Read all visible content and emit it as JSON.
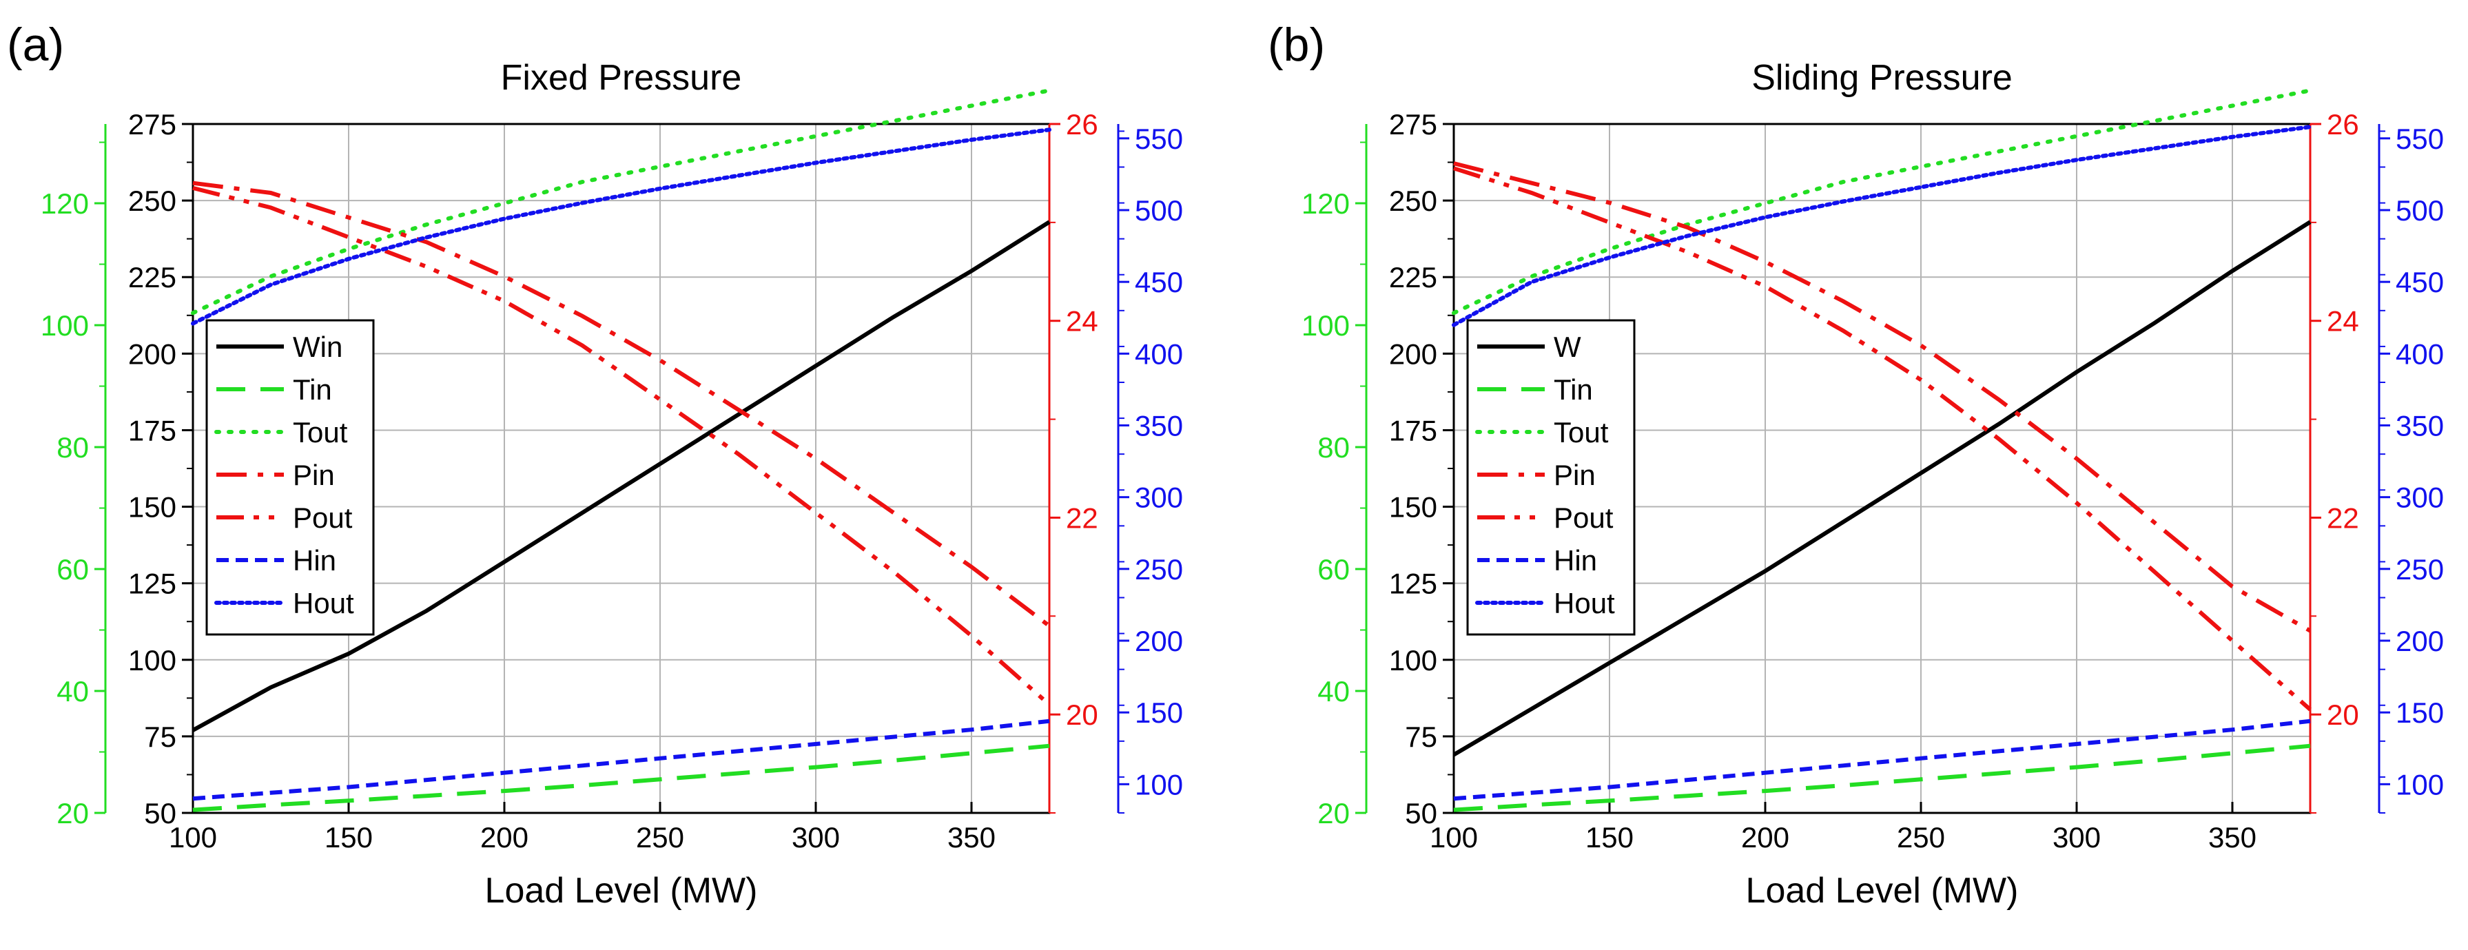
{
  "colors": {
    "black": "#000000",
    "green": "#22dd22",
    "red": "#ee1111",
    "blue": "#1111ee",
    "grid": "#b4b4b4"
  },
  "chart_data": [
    {
      "type": "line",
      "panel_label": "(a)",
      "title": "Fixed Pressure",
      "xlabel": "Load Level (MW)",
      "xlim": [
        100,
        375
      ],
      "xticks": [
        100,
        150,
        200,
        250,
        300,
        350
      ],
      "xtick_labels": [
        "100",
        "150",
        "200",
        "250",
        "300",
        "350"
      ],
      "axes": {
        "left_black": {
          "lim": [
            50,
            275
          ],
          "ticks": [
            50,
            75,
            100,
            125,
            150,
            175,
            200,
            225,
            250,
            275
          ],
          "labels": [
            "50",
            "75",
            "100",
            "125",
            "150",
            "175",
            "200",
            "225",
            "250",
            "275"
          ]
        },
        "left_green": {
          "lim": [
            20,
            133
          ],
          "ticks": [
            20,
            40,
            60,
            80,
            100,
            120
          ],
          "labels": [
            "20",
            "40",
            "60",
            "80",
            "100",
            "120"
          ]
        },
        "right_red": {
          "lim": [
            19.0,
            26.0
          ],
          "ticks": [
            20,
            22,
            24,
            26
          ],
          "labels": [
            "20",
            "22",
            "24",
            "26"
          ]
        },
        "right_blue": {
          "lim": [
            80,
            560
          ],
          "ticks": [
            100,
            150,
            200,
            250,
            300,
            350,
            400,
            450,
            500,
            550
          ],
          "labels": [
            "100",
            "150",
            "200",
            "250",
            "300",
            "350",
            "400",
            "450",
            "500",
            "550"
          ]
        }
      },
      "x": [
        100,
        125,
        150,
        175,
        200,
        225,
        250,
        275,
        300,
        325,
        350,
        375
      ],
      "series": [
        {
          "name": "Win",
          "axis": "left_black",
          "style": "solid",
          "color": "#000000",
          "values": [
            77,
            91,
            102,
            116,
            132,
            148,
            164,
            180,
            196,
            212,
            227,
            243
          ]
        },
        {
          "name": "Tin",
          "axis": "left_green",
          "style": "dash",
          "color": "#22dd22",
          "values": [
            20.5,
            21.3,
            22.0,
            22.8,
            23.6,
            24.5,
            25.5,
            26.5,
            27.5,
            28.6,
            29.8,
            31.0
          ]
        },
        {
          "name": "Tout",
          "axis": "left_green",
          "style": "dot",
          "color": "#22dd22",
          "values": [
            102,
            108,
            112.5,
            116.5,
            120,
            123.5,
            126,
            128.5,
            131,
            133.5,
            136,
            138.5
          ]
        },
        {
          "name": "Pin",
          "axis": "right_red",
          "style": "dashdot",
          "color": "#ee1111",
          "values": [
            25.4,
            25.3,
            25.05,
            24.8,
            24.45,
            24.05,
            23.6,
            23.1,
            22.6,
            22.05,
            21.5,
            20.9
          ]
        },
        {
          "name": "Pout",
          "axis": "right_red",
          "style": "dashdotdot",
          "color": "#ee1111",
          "values": [
            25.35,
            25.15,
            24.85,
            24.55,
            24.2,
            23.75,
            23.2,
            22.65,
            22.05,
            21.45,
            20.8,
            20.1
          ]
        },
        {
          "name": "Hin",
          "axis": "right_blue",
          "style": "shortdash",
          "color": "#1111ee",
          "values": [
            90,
            94,
            98,
            103,
            108,
            113,
            118,
            123,
            128,
            133,
            138,
            144
          ]
        },
        {
          "name": "Hout",
          "axis": "right_blue",
          "style": "densedot",
          "color": "#1111ee",
          "values": [
            421,
            448,
            466,
            481,
            494,
            505,
            515,
            524,
            533,
            541,
            549,
            556
          ]
        }
      ],
      "legend_position": "mid-left"
    },
    {
      "type": "line",
      "panel_label": "(b)",
      "title": "Sliding Pressure",
      "xlabel": "Load Level (MW)",
      "xlim": [
        100,
        375
      ],
      "xticks": [
        100,
        150,
        200,
        250,
        300,
        350
      ],
      "xtick_labels": [
        "100",
        "150",
        "200",
        "250",
        "300",
        "350"
      ],
      "axes": {
        "left_black": {
          "lim": [
            50,
            275
          ],
          "ticks": [
            50,
            75,
            100,
            125,
            150,
            175,
            200,
            225,
            250,
            275
          ],
          "labels": [
            "50",
            "75",
            "100",
            "125",
            "150",
            "175",
            "200",
            "225",
            "250",
            "275"
          ]
        },
        "left_green": {
          "lim": [
            20,
            133
          ],
          "ticks": [
            20,
            40,
            60,
            80,
            100,
            120
          ],
          "labels": [
            "20",
            "40",
            "60",
            "80",
            "100",
            "120"
          ]
        },
        "right_red": {
          "lim": [
            19.0,
            26.0
          ],
          "ticks": [
            20,
            22,
            24,
            26
          ],
          "labels": [
            "20",
            "22",
            "24",
            "26"
          ]
        },
        "right_blue": {
          "lim": [
            80,
            560
          ],
          "ticks": [
            100,
            150,
            200,
            250,
            300,
            350,
            400,
            450,
            500,
            550
          ],
          "labels": [
            "100",
            "150",
            "200",
            "250",
            "300",
            "350",
            "400",
            "450",
            "500",
            "550"
          ]
        }
      },
      "x": [
        100,
        125,
        150,
        175,
        200,
        225,
        250,
        275,
        300,
        325,
        350,
        375
      ],
      "series": [
        {
          "name": "W",
          "axis": "left_black",
          "style": "solid",
          "color": "#000000",
          "values": [
            69,
            84,
            99,
            114,
            129,
            145,
            161,
            177,
            194,
            210,
            227,
            243
          ]
        },
        {
          "name": "Tin",
          "axis": "left_green",
          "style": "dash",
          "color": "#22dd22",
          "values": [
            20.5,
            21.3,
            22.0,
            22.8,
            23.6,
            24.5,
            25.5,
            26.5,
            27.5,
            28.6,
            29.8,
            31.0
          ]
        },
        {
          "name": "Tout",
          "axis": "left_green",
          "style": "dot",
          "color": "#22dd22",
          "values": [
            102,
            108,
            112.5,
            116.5,
            120,
            123.5,
            126,
            128.5,
            131,
            133.5,
            136,
            138.5
          ]
        },
        {
          "name": "Pin",
          "axis": "right_red",
          "style": "dashdot",
          "color": "#ee1111",
          "values": [
            25.6,
            25.4,
            25.2,
            24.95,
            24.6,
            24.2,
            23.75,
            23.2,
            22.6,
            21.95,
            21.3,
            20.85
          ]
        },
        {
          "name": "Pout",
          "axis": "right_red",
          "style": "dashdotdot",
          "color": "#ee1111",
          "values": [
            25.55,
            25.3,
            25.0,
            24.7,
            24.35,
            23.9,
            23.4,
            22.8,
            22.15,
            21.45,
            20.75,
            20.05
          ]
        },
        {
          "name": "Hin",
          "axis": "right_blue",
          "style": "shortdash",
          "color": "#1111ee",
          "values": [
            90,
            94,
            98,
            103,
            108,
            113,
            118,
            123,
            128,
            133,
            138,
            144
          ]
        },
        {
          "name": "Hout",
          "axis": "right_blue",
          "style": "densedot",
          "color": "#1111ee",
          "values": [
            420,
            450,
            467,
            482,
            495,
            506,
            516,
            526,
            535,
            543,
            551,
            558
          ]
        }
      ],
      "legend_position": "mid-left"
    }
  ]
}
